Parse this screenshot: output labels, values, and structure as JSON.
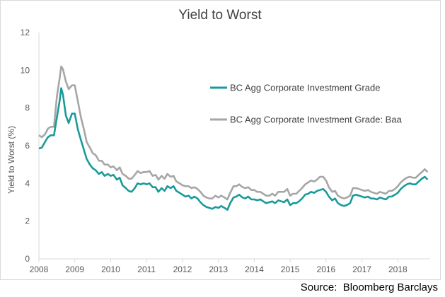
{
  "chart_data": {
    "type": "line",
    "title": "Yield to Worst",
    "xlabel": "",
    "ylabel": "Yield to Worst (%)",
    "x_ticks": [
      "2008",
      "2009",
      "2010",
      "2011",
      "2012",
      "2013",
      "2014",
      "2015",
      "2016",
      "2017",
      "2018"
    ],
    "xlim": [
      2008.0,
      2018.9
    ],
    "y_ticks": [
      "0",
      "2",
      "4",
      "6",
      "8",
      "10",
      "12"
    ],
    "ylim": [
      0,
      12
    ],
    "grid": false,
    "legend_position": "upper-right-inside",
    "series": [
      {
        "name": "BC Agg Corporate Investment Grade",
        "color": "#1a9a9a",
        "points": [
          [
            2008.0,
            5.85
          ],
          [
            2008.08,
            5.9
          ],
          [
            2008.17,
            6.2
          ],
          [
            2008.25,
            6.45
          ],
          [
            2008.33,
            6.55
          ],
          [
            2008.42,
            6.55
          ],
          [
            2008.5,
            7.5
          ],
          [
            2008.58,
            8.4
          ],
          [
            2008.62,
            9.05
          ],
          [
            2008.67,
            8.7
          ],
          [
            2008.75,
            7.6
          ],
          [
            2008.83,
            7.2
          ],
          [
            2008.92,
            7.7
          ],
          [
            2009.0,
            7.7
          ],
          [
            2009.08,
            6.9
          ],
          [
            2009.17,
            6.3
          ],
          [
            2009.25,
            5.8
          ],
          [
            2009.33,
            5.3
          ],
          [
            2009.42,
            5.0
          ],
          [
            2009.5,
            4.8
          ],
          [
            2009.58,
            4.7
          ],
          [
            2009.67,
            4.5
          ],
          [
            2009.75,
            4.6
          ],
          [
            2009.83,
            4.4
          ],
          [
            2009.92,
            4.5
          ],
          [
            2010.0,
            4.4
          ],
          [
            2010.08,
            4.45
          ],
          [
            2010.17,
            4.2
          ],
          [
            2010.25,
            4.3
          ],
          [
            2010.33,
            3.9
          ],
          [
            2010.42,
            3.75
          ],
          [
            2010.5,
            3.6
          ],
          [
            2010.58,
            3.55
          ],
          [
            2010.67,
            3.75
          ],
          [
            2010.75,
            4.0
          ],
          [
            2010.83,
            3.95
          ],
          [
            2010.92,
            4.0
          ],
          [
            2011.0,
            3.95
          ],
          [
            2011.08,
            4.0
          ],
          [
            2011.17,
            3.8
          ],
          [
            2011.25,
            3.8
          ],
          [
            2011.33,
            3.55
          ],
          [
            2011.42,
            3.75
          ],
          [
            2011.5,
            3.6
          ],
          [
            2011.58,
            3.85
          ],
          [
            2011.67,
            3.75
          ],
          [
            2011.75,
            3.85
          ],
          [
            2011.83,
            3.6
          ],
          [
            2011.92,
            3.5
          ],
          [
            2012.0,
            3.4
          ],
          [
            2012.08,
            3.3
          ],
          [
            2012.17,
            3.35
          ],
          [
            2012.25,
            3.2
          ],
          [
            2012.33,
            3.3
          ],
          [
            2012.42,
            3.2
          ],
          [
            2012.5,
            3.0
          ],
          [
            2012.58,
            2.85
          ],
          [
            2012.67,
            2.75
          ],
          [
            2012.75,
            2.7
          ],
          [
            2012.83,
            2.65
          ],
          [
            2012.92,
            2.75
          ],
          [
            2013.0,
            2.7
          ],
          [
            2013.08,
            2.8
          ],
          [
            2013.17,
            2.7
          ],
          [
            2013.25,
            2.6
          ],
          [
            2013.33,
            2.95
          ],
          [
            2013.42,
            3.25
          ],
          [
            2013.5,
            3.3
          ],
          [
            2013.58,
            3.4
          ],
          [
            2013.67,
            3.25
          ],
          [
            2013.75,
            3.2
          ],
          [
            2013.83,
            3.3
          ],
          [
            2013.92,
            3.15
          ],
          [
            2014.0,
            3.15
          ],
          [
            2014.08,
            3.1
          ],
          [
            2014.17,
            3.15
          ],
          [
            2014.25,
            3.05
          ],
          [
            2014.33,
            2.95
          ],
          [
            2014.42,
            3.0
          ],
          [
            2014.5,
            3.05
          ],
          [
            2014.58,
            2.95
          ],
          [
            2014.67,
            3.1
          ],
          [
            2014.75,
            3.05
          ],
          [
            2014.83,
            3.0
          ],
          [
            2014.92,
            3.15
          ],
          [
            2015.0,
            2.85
          ],
          [
            2015.08,
            2.95
          ],
          [
            2015.17,
            2.95
          ],
          [
            2015.25,
            3.05
          ],
          [
            2015.33,
            3.2
          ],
          [
            2015.42,
            3.4
          ],
          [
            2015.5,
            3.45
          ],
          [
            2015.58,
            3.55
          ],
          [
            2015.67,
            3.5
          ],
          [
            2015.75,
            3.6
          ],
          [
            2015.83,
            3.65
          ],
          [
            2015.92,
            3.7
          ],
          [
            2016.0,
            3.55
          ],
          [
            2016.08,
            3.3
          ],
          [
            2016.17,
            3.1
          ],
          [
            2016.25,
            3.2
          ],
          [
            2016.33,
            2.95
          ],
          [
            2016.42,
            2.85
          ],
          [
            2016.5,
            2.8
          ],
          [
            2016.58,
            2.85
          ],
          [
            2016.67,
            2.95
          ],
          [
            2016.75,
            3.35
          ],
          [
            2016.83,
            3.4
          ],
          [
            2016.92,
            3.35
          ],
          [
            2017.0,
            3.3
          ],
          [
            2017.08,
            3.25
          ],
          [
            2017.17,
            3.3
          ],
          [
            2017.25,
            3.2
          ],
          [
            2017.33,
            3.2
          ],
          [
            2017.42,
            3.15
          ],
          [
            2017.5,
            3.25
          ],
          [
            2017.58,
            3.2
          ],
          [
            2017.67,
            3.15
          ],
          [
            2017.75,
            3.3
          ],
          [
            2017.83,
            3.3
          ],
          [
            2017.92,
            3.4
          ],
          [
            2018.0,
            3.5
          ],
          [
            2018.08,
            3.7
          ],
          [
            2018.17,
            3.85
          ],
          [
            2018.25,
            3.95
          ],
          [
            2018.33,
            4.0
          ],
          [
            2018.42,
            3.95
          ],
          [
            2018.5,
            3.95
          ],
          [
            2018.58,
            4.1
          ],
          [
            2018.67,
            4.25
          ],
          [
            2018.75,
            4.35
          ],
          [
            2018.83,
            4.2
          ]
        ]
      },
      {
        "name": "BC Agg Corporate Investment Grade: Baa",
        "color": "#a6a6a6",
        "points": [
          [
            2008.0,
            6.55
          ],
          [
            2008.08,
            6.45
          ],
          [
            2008.17,
            6.6
          ],
          [
            2008.25,
            6.9
          ],
          [
            2008.33,
            7.0
          ],
          [
            2008.42,
            7.0
          ],
          [
            2008.5,
            8.6
          ],
          [
            2008.58,
            9.6
          ],
          [
            2008.62,
            10.2
          ],
          [
            2008.67,
            10.05
          ],
          [
            2008.75,
            9.4
          ],
          [
            2008.83,
            9.0
          ],
          [
            2008.92,
            9.2
          ],
          [
            2009.0,
            9.2
          ],
          [
            2009.08,
            8.4
          ],
          [
            2009.17,
            7.5
          ],
          [
            2009.25,
            6.9
          ],
          [
            2009.33,
            6.2
          ],
          [
            2009.42,
            5.9
          ],
          [
            2009.5,
            5.6
          ],
          [
            2009.58,
            5.5
          ],
          [
            2009.67,
            5.2
          ],
          [
            2009.75,
            5.2
          ],
          [
            2009.83,
            5.0
          ],
          [
            2009.92,
            5.0
          ],
          [
            2010.0,
            4.85
          ],
          [
            2010.08,
            4.9
          ],
          [
            2010.17,
            4.7
          ],
          [
            2010.25,
            4.85
          ],
          [
            2010.33,
            4.5
          ],
          [
            2010.42,
            4.4
          ],
          [
            2010.5,
            4.25
          ],
          [
            2010.58,
            4.25
          ],
          [
            2010.67,
            4.45
          ],
          [
            2010.75,
            4.65
          ],
          [
            2010.83,
            4.55
          ],
          [
            2010.92,
            4.6
          ],
          [
            2011.0,
            4.6
          ],
          [
            2011.08,
            4.65
          ],
          [
            2011.17,
            4.4
          ],
          [
            2011.25,
            4.45
          ],
          [
            2011.33,
            4.2
          ],
          [
            2011.42,
            4.4
          ],
          [
            2011.5,
            4.25
          ],
          [
            2011.58,
            4.5
          ],
          [
            2011.67,
            4.35
          ],
          [
            2011.75,
            4.4
          ],
          [
            2011.83,
            4.1
          ],
          [
            2011.92,
            4.0
          ],
          [
            2012.0,
            3.9
          ],
          [
            2012.08,
            3.85
          ],
          [
            2012.17,
            3.85
          ],
          [
            2012.25,
            3.75
          ],
          [
            2012.33,
            3.8
          ],
          [
            2012.42,
            3.7
          ],
          [
            2012.5,
            3.55
          ],
          [
            2012.58,
            3.35
          ],
          [
            2012.67,
            3.25
          ],
          [
            2012.75,
            3.2
          ],
          [
            2012.83,
            3.2
          ],
          [
            2012.92,
            3.35
          ],
          [
            2013.0,
            3.25
          ],
          [
            2013.08,
            3.35
          ],
          [
            2013.17,
            3.25
          ],
          [
            2013.25,
            3.15
          ],
          [
            2013.33,
            3.5
          ],
          [
            2013.42,
            3.85
          ],
          [
            2013.5,
            3.85
          ],
          [
            2013.58,
            3.95
          ],
          [
            2013.67,
            3.8
          ],
          [
            2013.75,
            3.75
          ],
          [
            2013.83,
            3.8
          ],
          [
            2013.92,
            3.65
          ],
          [
            2014.0,
            3.65
          ],
          [
            2014.08,
            3.55
          ],
          [
            2014.17,
            3.55
          ],
          [
            2014.25,
            3.45
          ],
          [
            2014.33,
            3.35
          ],
          [
            2014.42,
            3.35
          ],
          [
            2014.5,
            3.45
          ],
          [
            2014.58,
            3.35
          ],
          [
            2014.67,
            3.55
          ],
          [
            2014.75,
            3.55
          ],
          [
            2014.83,
            3.55
          ],
          [
            2014.92,
            3.7
          ],
          [
            2015.0,
            3.35
          ],
          [
            2015.08,
            3.45
          ],
          [
            2015.17,
            3.45
          ],
          [
            2015.25,
            3.6
          ],
          [
            2015.33,
            3.75
          ],
          [
            2015.42,
            3.95
          ],
          [
            2015.5,
            4.05
          ],
          [
            2015.58,
            4.15
          ],
          [
            2015.67,
            4.1
          ],
          [
            2015.75,
            4.2
          ],
          [
            2015.83,
            4.35
          ],
          [
            2015.92,
            4.35
          ],
          [
            2016.0,
            4.15
          ],
          [
            2016.08,
            3.8
          ],
          [
            2016.17,
            3.55
          ],
          [
            2016.25,
            3.6
          ],
          [
            2016.33,
            3.35
          ],
          [
            2016.42,
            3.25
          ],
          [
            2016.5,
            3.2
          ],
          [
            2016.58,
            3.25
          ],
          [
            2016.67,
            3.35
          ],
          [
            2016.75,
            3.75
          ],
          [
            2016.83,
            3.75
          ],
          [
            2016.92,
            3.7
          ],
          [
            2017.0,
            3.65
          ],
          [
            2017.08,
            3.6
          ],
          [
            2017.17,
            3.65
          ],
          [
            2017.25,
            3.55
          ],
          [
            2017.33,
            3.5
          ],
          [
            2017.42,
            3.45
          ],
          [
            2017.5,
            3.55
          ],
          [
            2017.58,
            3.5
          ],
          [
            2017.67,
            3.45
          ],
          [
            2017.75,
            3.6
          ],
          [
            2017.83,
            3.6
          ],
          [
            2017.92,
            3.7
          ],
          [
            2018.0,
            3.85
          ],
          [
            2018.08,
            4.05
          ],
          [
            2018.17,
            4.2
          ],
          [
            2018.25,
            4.3
          ],
          [
            2018.33,
            4.35
          ],
          [
            2018.42,
            4.3
          ],
          [
            2018.5,
            4.3
          ],
          [
            2018.58,
            4.45
          ],
          [
            2018.67,
            4.6
          ],
          [
            2018.75,
            4.75
          ],
          [
            2018.83,
            4.6
          ]
        ]
      }
    ]
  },
  "footer": {
    "source": "Source:  Bloomberg Barclays"
  }
}
